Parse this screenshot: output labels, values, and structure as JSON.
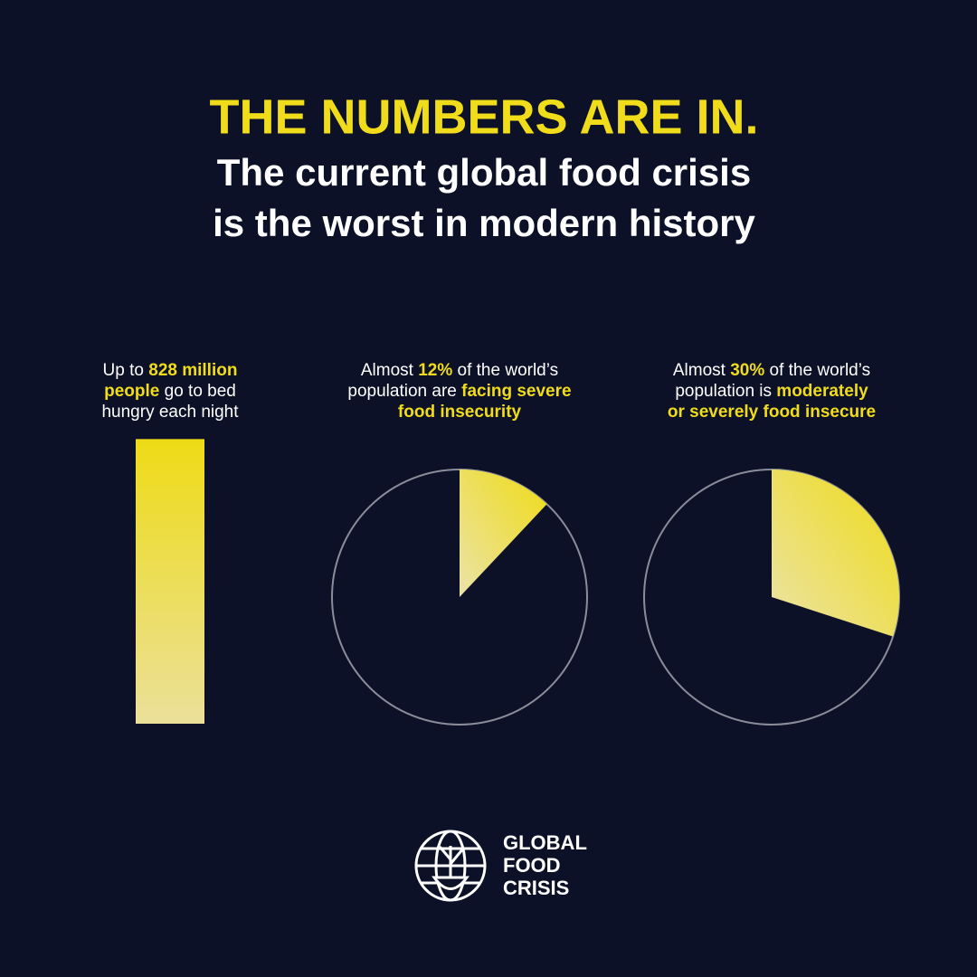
{
  "header": {
    "title": "THE NUMBERS ARE IN.",
    "subtitle": [
      "The current global food crisis",
      "is the worst in modern history"
    ]
  },
  "chart_data": [
    {
      "type": "bar",
      "values": [
        828
      ],
      "color": "#f0dc1a",
      "caption": [
        [
          {
            "text": "Up to ",
            "highlight": false
          },
          {
            "text": "828 million",
            "highlight": true
          }
        ],
        [
          {
            "text": "people",
            "highlight": true
          },
          {
            "text": " go to bed",
            "highlight": false
          }
        ],
        [
          {
            "text": "hungry each night",
            "highlight": false
          }
        ]
      ]
    },
    {
      "type": "pie",
      "values": [
        12
      ],
      "color": "#f0dc1a",
      "caption": [
        [
          {
            "text": "Almost ",
            "highlight": false
          },
          {
            "text": "12%",
            "highlight": true
          },
          {
            "text": " of the world’s",
            "highlight": false
          }
        ],
        [
          {
            "text": "population are ",
            "highlight": false
          },
          {
            "text": "facing severe",
            "highlight": true
          }
        ],
        [
          {
            "text": "food insecurity",
            "highlight": true
          }
        ]
      ]
    },
    {
      "type": "pie",
      "values": [
        30
      ],
      "color": "#f0dc1a",
      "caption": [
        [
          {
            "text": "Almost ",
            "highlight": false
          },
          {
            "text": "30%",
            "highlight": true
          },
          {
            "text": " of the world’s",
            "highlight": false
          }
        ],
        [
          {
            "text": "population is ",
            "highlight": false
          },
          {
            "text": "moderately",
            "highlight": true
          }
        ],
        [
          {
            "text": "or severely food insecure",
            "highlight": true
          }
        ]
      ]
    }
  ],
  "logo": {
    "lines": [
      "GLOBAL",
      "FOOD",
      "CRISIS"
    ]
  }
}
